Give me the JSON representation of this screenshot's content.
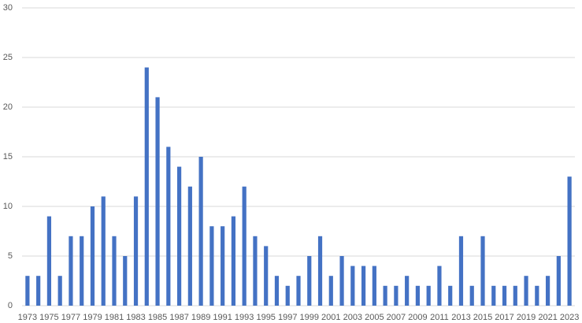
{
  "chart_data": {
    "type": "bar",
    "categories": [
      "1973",
      null,
      "1975",
      null,
      "1977",
      null,
      "1979",
      null,
      "1981",
      null,
      "1983",
      null,
      "1985",
      null,
      "1987",
      null,
      "1989",
      null,
      "1991",
      null,
      "1993",
      null,
      "1995",
      null,
      "1997",
      null,
      "1999",
      null,
      "2001",
      null,
      "2003",
      null,
      "2005",
      null,
      "2007",
      null,
      "2009",
      null,
      "2011",
      null,
      "2013",
      null,
      "2015",
      null,
      "2017",
      null,
      "2019",
      null,
      "2021",
      null,
      "2023"
    ],
    "values": [
      3,
      3,
      9,
      3,
      7,
      7,
      10,
      11,
      7,
      5,
      11,
      24,
      21,
      16,
      14,
      12,
      15,
      8,
      8,
      9,
      12,
      7,
      6,
      3,
      2,
      3,
      5,
      7,
      3,
      5,
      4,
      4,
      4,
      2,
      2,
      3,
      2,
      2,
      4,
      2,
      7,
      2,
      7,
      2,
      2,
      2,
      3,
      2,
      3,
      5,
      13
    ],
    "color": "#4472c4",
    "ylim": [
      0,
      30
    ],
    "yticks": [
      0,
      5,
      10,
      15,
      20,
      25,
      30
    ],
    "grid": true
  }
}
